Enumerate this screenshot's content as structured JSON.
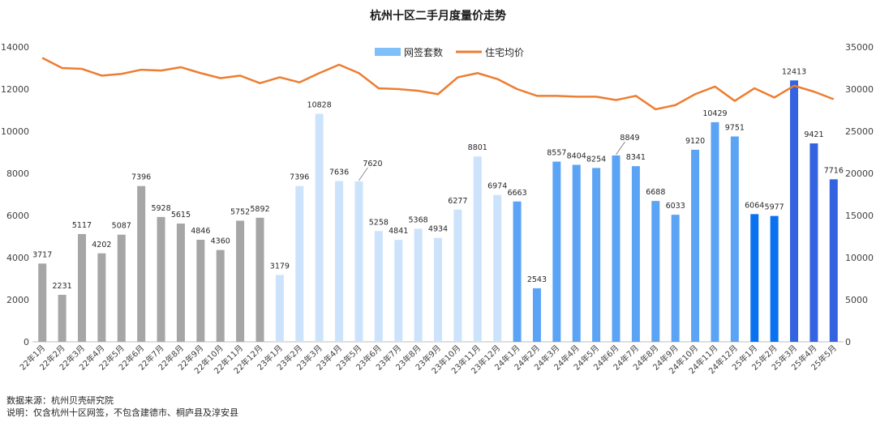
{
  "footer": {
    "source": "数据来源：杭州贝壳研究院",
    "note": "说明：仅含杭州十区网签，不包含建德市、桐庐县及淳安县"
  },
  "chart_data": {
    "type": "bar",
    "title": "杭州十区二手月度量价走势",
    "categories": [
      "22年1月",
      "22年2月",
      "22年3月",
      "22年4月",
      "22年5月",
      "22年6月",
      "22年7月",
      "22年8月",
      "22年9月",
      "22年10月",
      "22年11月",
      "22年12月",
      "23年1月",
      "23年2月",
      "23年3月",
      "23年4月",
      "23年5月",
      "23年6月",
      "23年7月",
      "23年8月",
      "23年9月",
      "23年10月",
      "23年11月",
      "23年12月",
      "24年1月",
      "24年2月",
      "24年3月",
      "24年4月",
      "24年5月",
      "24年6月",
      "24年7月",
      "24年8月",
      "24年9月",
      "24年10月",
      "24年11月",
      "24年12月",
      "25年1月",
      "25年2月",
      "25年3月",
      "25年4月",
      "25年5月"
    ],
    "series": [
      {
        "name": "网签套数",
        "type": "bar",
        "axis": "left",
        "values": [
          3717,
          2231,
          5117,
          4202,
          5087,
          7396,
          5928,
          5615,
          4846,
          4360,
          5752,
          5892,
          3179,
          7396,
          10828,
          7636,
          7620,
          5258,
          4841,
          5368,
          4934,
          6277,
          8801,
          6974,
          6663,
          2543,
          8557,
          8404,
          8254,
          8849,
          8341,
          6688,
          6033,
          9120,
          10429,
          9751,
          6064,
          5977,
          12413,
          9421,
          7716
        ],
        "colors": [
          "#a6a6a6",
          "#a6a6a6",
          "#a6a6a6",
          "#a6a6a6",
          "#a6a6a6",
          "#a6a6a6",
          "#a6a6a6",
          "#a6a6a6",
          "#a6a6a6",
          "#a6a6a6",
          "#a6a6a6",
          "#a6a6a6",
          "#cde3fb",
          "#cde3fb",
          "#cde3fb",
          "#cde3fb",
          "#cde3fb",
          "#cde3fb",
          "#cde3fb",
          "#cde3fb",
          "#cde3fb",
          "#cde3fb",
          "#cde3fb",
          "#cde3fb",
          "#5ba4f5",
          "#5ba4f5",
          "#5ba4f5",
          "#5ba4f5",
          "#5ba4f5",
          "#5ba4f5",
          "#5ba4f5",
          "#5ba4f5",
          "#5ba4f5",
          "#5ba4f5",
          "#5ba4f5",
          "#5ba4f5",
          "#0a72f0",
          "#0a72f0",
          "#3463e0",
          "#3463e0",
          "#3463e0"
        ]
      },
      {
        "name": "住宅均价",
        "type": "line",
        "axis": "right",
        "color": "#ed7d31",
        "values": [
          33700,
          32500,
          32400,
          31600,
          31800,
          32300,
          32200,
          32600,
          31900,
          31300,
          31600,
          30700,
          31400,
          30800,
          31900,
          32900,
          31900,
          30100,
          30000,
          29800,
          29400,
          31400,
          31900,
          31200,
          30000,
          29200,
          29200,
          29100,
          29100,
          28700,
          29200,
          27600,
          28100,
          29400,
          30300,
          28600,
          30100,
          29000,
          30400,
          29700,
          28800
        ]
      }
    ],
    "legend_color_bar": "#7ec0f7",
    "y_left": {
      "min": 0,
      "max": 14000,
      "ticks": [
        0,
        2000,
        4000,
        6000,
        8000,
        10000,
        12000,
        14000
      ]
    },
    "y_right": {
      "min": 0,
      "max": 35000,
      "ticks": [
        0,
        5000,
        10000,
        15000,
        20000,
        25000,
        30000,
        35000
      ]
    },
    "grid": false,
    "legend_position": "top-center",
    "callout_labels": [
      "7620",
      "8849"
    ]
  }
}
